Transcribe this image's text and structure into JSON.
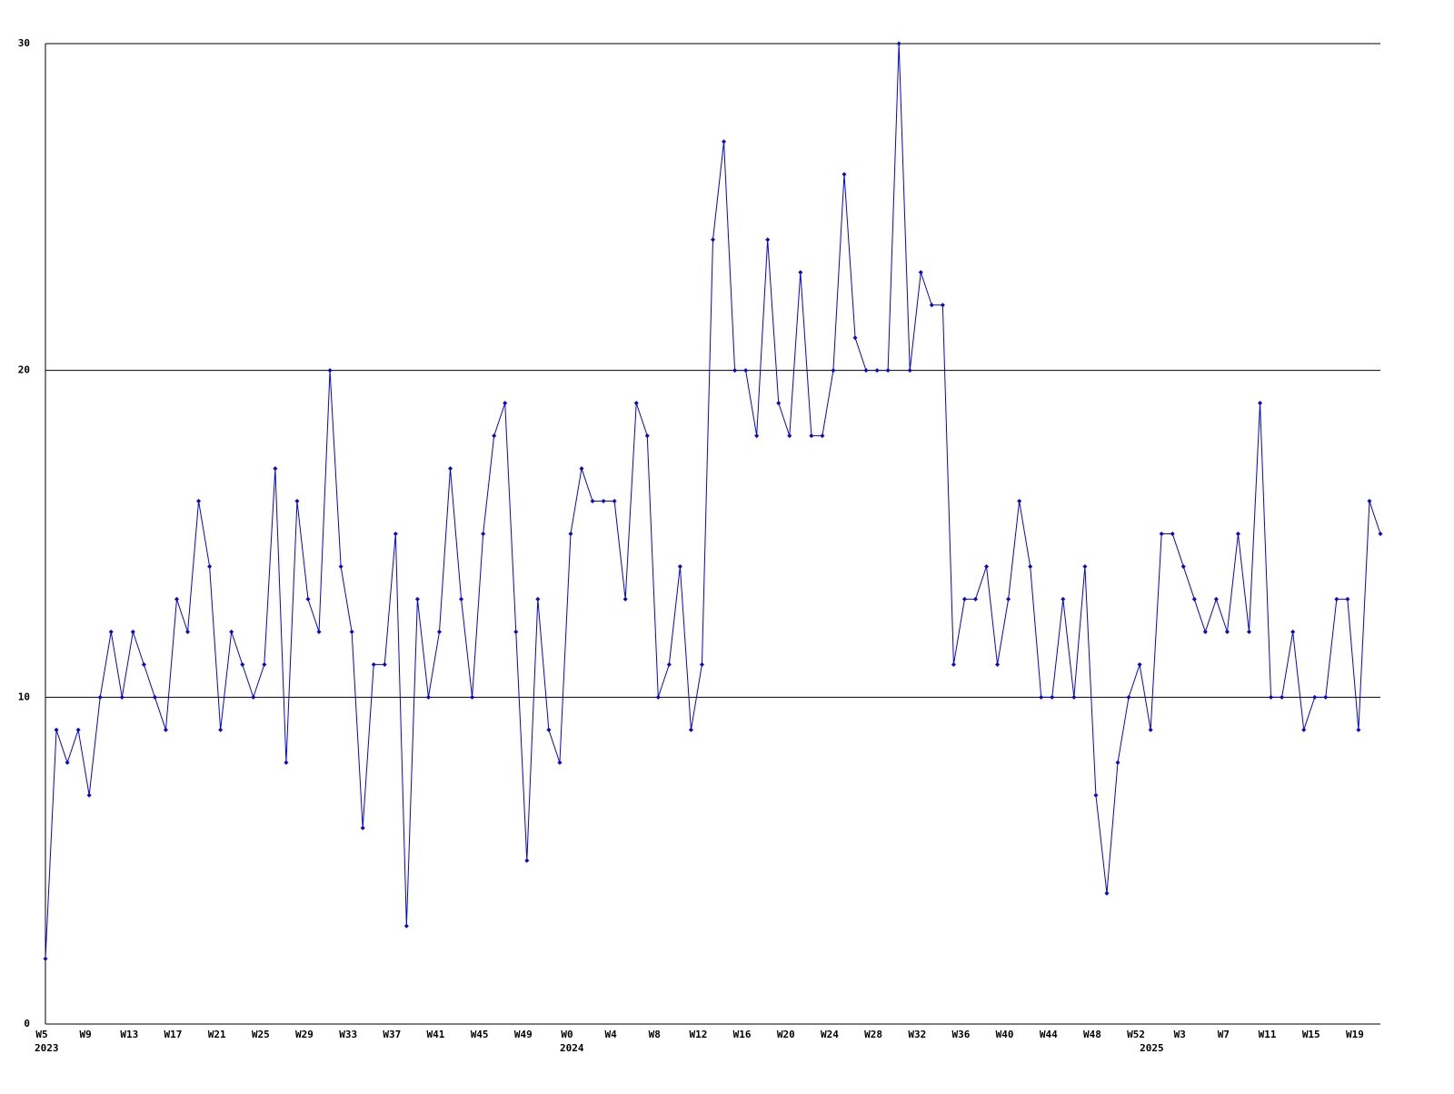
{
  "chart_data": {
    "type": "line",
    "categories": [
      "W5",
      null,
      null,
      null,
      "W9",
      null,
      null,
      null,
      "W13",
      null,
      null,
      null,
      "W17",
      null,
      null,
      null,
      "W21",
      null,
      null,
      null,
      "W25",
      null,
      null,
      null,
      "W29",
      null,
      null,
      null,
      "W33",
      null,
      null,
      null,
      "W37",
      null,
      null,
      null,
      "W41",
      null,
      null,
      null,
      "W45",
      null,
      null,
      null,
      "W49",
      null,
      null,
      null,
      "W0",
      null,
      null,
      null,
      "W4",
      null,
      null,
      null,
      "W8",
      null,
      null,
      null,
      "W12",
      null,
      null,
      null,
      "W16",
      null,
      null,
      null,
      "W20",
      null,
      null,
      null,
      "W24",
      null,
      null,
      null,
      "W28",
      null,
      null,
      null,
      "W32",
      null,
      null,
      null,
      "W36",
      null,
      null,
      null,
      "W40",
      null,
      null,
      null,
      "W44",
      null,
      null,
      null,
      "W48",
      null,
      null,
      null,
      "W52",
      null,
      null,
      null,
      "W3",
      null,
      null,
      null,
      "W7",
      null,
      null,
      null,
      "W11",
      null,
      null,
      null,
      "W15",
      null,
      null,
      null,
      "W19",
      null,
      null
    ],
    "years": [
      {
        "label": "2023",
        "index": 0
      },
      {
        "label": "2024",
        "index": 48
      },
      {
        "label": "2025",
        "index": 101
      }
    ],
    "values": [
      2,
      9,
      8,
      9,
      7,
      10,
      12,
      10,
      12,
      11,
      10,
      9,
      13,
      12,
      16,
      14,
      9,
      12,
      11,
      10,
      11,
      17,
      8,
      16,
      13,
      12,
      20,
      14,
      12,
      6,
      11,
      11,
      15,
      3,
      13,
      10,
      12,
      17,
      13,
      10,
      15,
      18,
      19,
      12,
      5,
      13,
      9,
      8,
      15,
      17,
      16,
      16,
      16,
      13,
      19,
      18,
      10,
      11,
      14,
      9,
      11,
      24,
      27,
      20,
      20,
      18,
      24,
      19,
      18,
      23,
      18,
      18,
      20,
      26,
      21,
      20,
      20,
      20,
      30,
      20,
      23,
      22,
      22,
      11,
      13,
      13,
      14,
      11,
      13,
      16,
      14,
      10,
      10,
      13,
      10,
      14,
      7,
      4,
      8,
      10,
      11,
      9,
      15,
      15,
      14,
      13,
      12,
      13,
      12,
      15,
      12,
      19,
      10,
      10,
      12,
      9,
      10,
      10,
      13,
      13,
      9,
      16,
      15
    ],
    "color": "#0000ff",
    "ylim": [
      0,
      30
    ],
    "yticks": [
      0,
      10,
      20,
      30
    ],
    "grid": true
  }
}
